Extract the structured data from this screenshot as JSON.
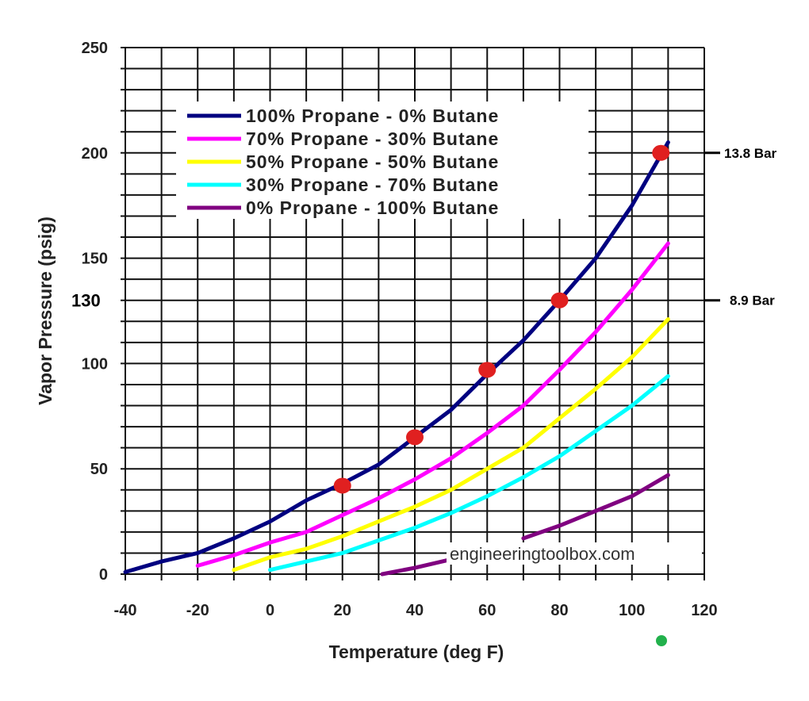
{
  "chart_data": {
    "type": "line",
    "title": "",
    "xlabel": "Temperature (deg F)",
    "ylabel": "Vapor Pressure (psig)",
    "xlim": [
      -40,
      120
    ],
    "ylim": [
      0,
      250
    ],
    "xticks": [
      -40,
      -20,
      0,
      20,
      40,
      60,
      80,
      100,
      120
    ],
    "yticks": [
      0,
      50,
      100,
      150,
      200,
      250
    ],
    "grid": true,
    "legend_position": "top-left",
    "series": [
      {
        "name": "100% Propane - 0% Butane",
        "color": "#000080",
        "x": [
          -40,
          -30,
          -20,
          -10,
          0,
          10,
          20,
          30,
          40,
          50,
          60,
          70,
          80,
          90,
          100,
          110
        ],
        "y": [
          1,
          6,
          10,
          17,
          25,
          35,
          43,
          52,
          65,
          78,
          95,
          111,
          130,
          150,
          175,
          205
        ]
      },
      {
        "name": "70% Propane - 30% Butane",
        "color": "#ff00ff",
        "x": [
          -20,
          -10,
          0,
          10,
          20,
          30,
          40,
          50,
          60,
          70,
          80,
          90,
          100,
          110
        ],
        "y": [
          4,
          9,
          15,
          20,
          28,
          36,
          45,
          55,
          67,
          80,
          97,
          115,
          135,
          157
        ]
      },
      {
        "name": "50% Propane - 50% Butane",
        "color": "#ffff00",
        "x": [
          -10,
          0,
          10,
          20,
          30,
          40,
          50,
          60,
          70,
          80,
          90,
          100,
          110
        ],
        "y": [
          2,
          8,
          12,
          18,
          25,
          32,
          40,
          50,
          60,
          74,
          88,
          103,
          121
        ]
      },
      {
        "name": "30% Propane - 70% Butane",
        "color": "#00ffff",
        "x": [
          0,
          10,
          20,
          30,
          40,
          50,
          60,
          70,
          80,
          90,
          100,
          110
        ],
        "y": [
          2,
          6,
          10,
          16,
          22,
          29,
          37,
          46,
          56,
          68,
          80,
          94
        ]
      },
      {
        "name": "0% Propane - 100% Butane",
        "color": "#800080",
        "x": [
          31,
          40,
          50,
          70,
          80,
          90,
          100,
          110
        ],
        "y": [
          0,
          3,
          7,
          17,
          23,
          30,
          37,
          47
        ]
      }
    ],
    "markers": {
      "color": "#e02020",
      "points": [
        [
          20,
          42
        ],
        [
          40,
          65
        ],
        [
          60,
          97
        ],
        [
          80,
          130
        ],
        [
          108,
          200
        ]
      ]
    },
    "annotations": [
      {
        "text": "130",
        "y": 130,
        "side": "left"
      },
      {
        "text": "13.8  Bar",
        "y": 200,
        "side": "right"
      },
      {
        "text": "8.9  Bar",
        "y": 130,
        "side": "right"
      }
    ],
    "watermark": "engineeringtoolbox.com"
  }
}
